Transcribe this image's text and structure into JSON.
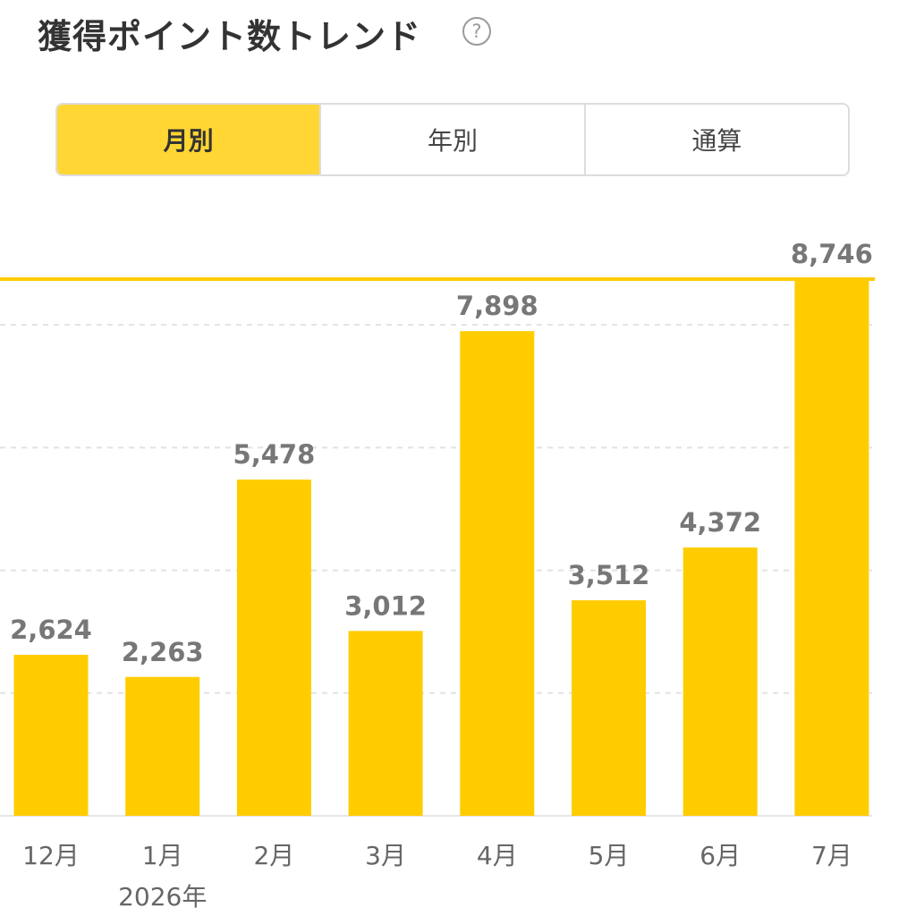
{
  "title": "獲得ポイント数トレンド",
  "help_icon": "question-circle-icon",
  "tabs": [
    {
      "label": "月別",
      "active": true
    },
    {
      "label": "年別",
      "active": false
    },
    {
      "label": "通算",
      "active": false
    }
  ],
  "colors": {
    "bar": "#ffcc00",
    "tab_active": "#ffd633",
    "value_label": "#777777",
    "axis_label": "#666666"
  },
  "chart_data": {
    "type": "bar",
    "categories": [
      "12月",
      "1月",
      "2月",
      "3月",
      "4月",
      "5月",
      "6月",
      "7月"
    ],
    "values": [
      2624,
      2263,
      5478,
      3012,
      7898,
      3512,
      4372,
      8746
    ],
    "value_labels": [
      "2,624",
      "2,263",
      "5,478",
      "3,012",
      "7,898",
      "3,512",
      "4,372",
      "8,746"
    ],
    "year_label": {
      "category": "1月",
      "text": "2026年"
    },
    "max_line": {
      "value": 8746
    },
    "ylim": [
      0,
      10000
    ],
    "grid": true
  }
}
